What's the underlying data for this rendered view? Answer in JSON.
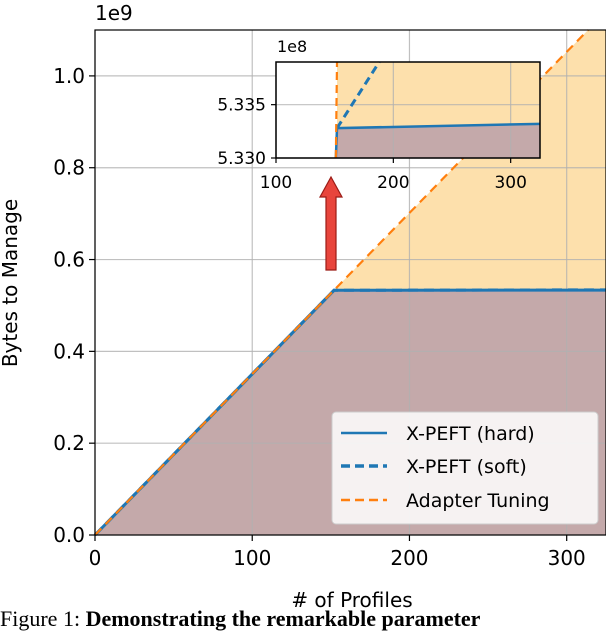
{
  "chart_data": {
    "type": "area",
    "xlabel": "# of Profiles",
    "ylabel": "Bytes to Manage",
    "xlim": [
      0,
      325
    ],
    "ylim": [
      0,
      1.1
    ],
    "y_scale_label": "1e9",
    "xticks": [
      0,
      100,
      200,
      300
    ],
    "yticks": [
      "0.0",
      "0.2",
      "0.4",
      "0.6",
      "0.8",
      "1.0"
    ],
    "grid": true,
    "legend_position": "lower-right",
    "series": [
      {
        "name": "X-PEFT (hard)",
        "style": "solid",
        "color": "#1f77b4",
        "x": [
          0,
          152,
          325
        ],
        "y": [
          0,
          0.533,
          0.5334
        ]
      },
      {
        "name": "X-PEFT (soft)",
        "style": "dashed",
        "color": "#1f77b4",
        "x": [
          0,
          152,
          325
        ],
        "y": [
          0,
          0.533,
          0.534
        ]
      },
      {
        "name": "Adapter Tuning",
        "style": "dashed",
        "color": "#ff7f0e",
        "x": [
          0,
          325
        ],
        "y": [
          0,
          1.14
        ]
      }
    ],
    "fill_colors": {
      "adapter": "#fde0ac",
      "xpeft": "#c4a9aa"
    },
    "inset": {
      "xlim": [
        100,
        325
      ],
      "ylim": [
        5.33,
        5.339
      ],
      "y_scale_label": "1e8",
      "xticks": [
        100,
        200,
        300
      ],
      "yticks": [
        "5.330",
        "5.335"
      ],
      "hard": {
        "x": [
          151,
          152,
          325
        ],
        "y": [
          5.33,
          5.3328,
          5.3332
        ]
      },
      "soft": {
        "x": [
          152,
          188
        ],
        "y": [
          5.3328,
          5.339
        ]
      },
      "adapter": {
        "x": [
          151,
          152
        ],
        "y": [
          5.33,
          5.339
        ]
      }
    },
    "annotation": {
      "type": "arrow",
      "color": "#e8453c"
    }
  },
  "caption": {
    "label": "Figure 1: ",
    "bold": "Demonstrating the remarkable parameter"
  }
}
